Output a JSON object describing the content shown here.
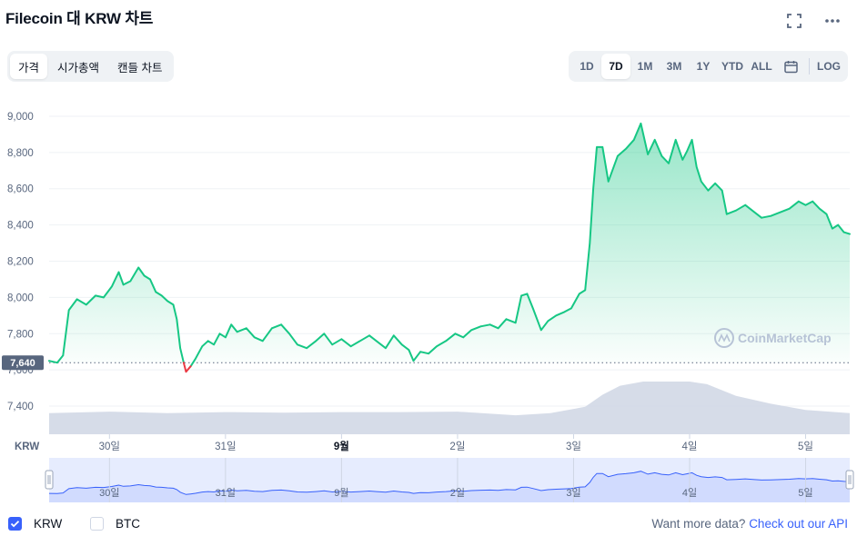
{
  "title": "Filecoin 대 KRW 차트",
  "header_icons": [
    "fullscreen-icon",
    "more-icon"
  ],
  "left_tabs": [
    {
      "label": "가격",
      "active": true
    },
    {
      "label": "시가총액",
      "active": false
    },
    {
      "label": "캔들 차트",
      "active": false
    }
  ],
  "range_tabs": [
    {
      "label": "1D",
      "active": false
    },
    {
      "label": "7D",
      "active": true
    },
    {
      "label": "1M",
      "active": false
    },
    {
      "label": "3M",
      "active": false
    },
    {
      "label": "1Y",
      "active": false
    },
    {
      "label": "YTD",
      "active": false
    },
    {
      "label": "ALL",
      "active": false
    }
  ],
  "log_label": "LOG",
  "watermark": "CoinMarketCap",
  "colors": {
    "up": "#16c784",
    "down": "#ea3943",
    "volume": "#cfd6e4",
    "navigator_fill": "#dce4fd",
    "navigator_line": "#3861fb",
    "accent": "#3861fb"
  },
  "chart_data": {
    "type": "area",
    "currency": "KRW",
    "y_axis_label": "KRW",
    "y_ticks": [
      7400,
      7600,
      7800,
      8000,
      8200,
      8400,
      8600,
      8800,
      9000
    ],
    "y_tick_labels": [
      "7,400",
      "7,600",
      "7,800",
      "8,000",
      "8,200",
      "8,400",
      "8,600",
      "8,800",
      "9,000"
    ],
    "ylim": [
      7300,
      9050
    ],
    "x_range_days": [
      -0.52,
      6.38
    ],
    "x_ticks": [
      {
        "label": "30일",
        "day": 0,
        "bold": false
      },
      {
        "label": "31일",
        "day": 1,
        "bold": false
      },
      {
        "label": "9월",
        "day": 2,
        "bold": true
      },
      {
        "label": "2일",
        "day": 3,
        "bold": false
      },
      {
        "label": "3일",
        "day": 4,
        "bold": false
      },
      {
        "label": "4일",
        "day": 5,
        "bold": false
      },
      {
        "label": "5일",
        "day": 6,
        "bold": false
      }
    ],
    "baseline_price": 7640,
    "baseline_label": "7,640",
    "grid": true,
    "price_series": [
      [
        -0.52,
        7650
      ],
      [
        -0.45,
        7640
      ],
      [
        -0.4,
        7680
      ],
      [
        -0.35,
        7930
      ],
      [
        -0.28,
        7990
      ],
      [
        -0.2,
        7960
      ],
      [
        -0.12,
        8010
      ],
      [
        -0.05,
        8000
      ],
      [
        0.02,
        8060
      ],
      [
        0.08,
        8140
      ],
      [
        0.12,
        8070
      ],
      [
        0.18,
        8090
      ],
      [
        0.25,
        8165
      ],
      [
        0.3,
        8120
      ],
      [
        0.35,
        8100
      ],
      [
        0.4,
        8030
      ],
      [
        0.45,
        8010
      ],
      [
        0.5,
        7980
      ],
      [
        0.55,
        7960
      ],
      [
        0.58,
        7880
      ],
      [
        0.61,
        7720
      ],
      [
        0.64,
        7640
      ],
      [
        0.66,
        7590
      ],
      [
        0.7,
        7620
      ],
      [
        0.74,
        7660
      ],
      [
        0.8,
        7730
      ],
      [
        0.85,
        7760
      ],
      [
        0.9,
        7740
      ],
      [
        0.95,
        7800
      ],
      [
        1.0,
        7780
      ],
      [
        1.05,
        7850
      ],
      [
        1.1,
        7810
      ],
      [
        1.18,
        7830
      ],
      [
        1.25,
        7780
      ],
      [
        1.32,
        7760
      ],
      [
        1.4,
        7830
      ],
      [
        1.48,
        7850
      ],
      [
        1.55,
        7800
      ],
      [
        1.62,
        7740
      ],
      [
        1.7,
        7720
      ],
      [
        1.78,
        7760
      ],
      [
        1.85,
        7800
      ],
      [
        1.92,
        7740
      ],
      [
        2.0,
        7770
      ],
      [
        2.08,
        7730
      ],
      [
        2.16,
        7760
      ],
      [
        2.24,
        7790
      ],
      [
        2.3,
        7760
      ],
      [
        2.38,
        7720
      ],
      [
        2.45,
        7790
      ],
      [
        2.52,
        7740
      ],
      [
        2.58,
        7710
      ],
      [
        2.62,
        7650
      ],
      [
        2.68,
        7700
      ],
      [
        2.75,
        7690
      ],
      [
        2.82,
        7730
      ],
      [
        2.9,
        7760
      ],
      [
        2.98,
        7800
      ],
      [
        3.05,
        7780
      ],
      [
        3.12,
        7820
      ],
      [
        3.2,
        7840
      ],
      [
        3.28,
        7850
      ],
      [
        3.35,
        7830
      ],
      [
        3.42,
        7880
      ],
      [
        3.5,
        7860
      ],
      [
        3.55,
        8010
      ],
      [
        3.6,
        8020
      ],
      [
        3.65,
        7940
      ],
      [
        3.72,
        7820
      ],
      [
        3.78,
        7870
      ],
      [
        3.85,
        7900
      ],
      [
        3.92,
        7920
      ],
      [
        3.98,
        7940
      ],
      [
        4.05,
        8020
      ],
      [
        4.1,
        8040
      ],
      [
        4.14,
        8300
      ],
      [
        4.17,
        8600
      ],
      [
        4.2,
        8830
      ],
      [
        4.25,
        8830
      ],
      [
        4.3,
        8640
      ],
      [
        4.38,
        8780
      ],
      [
        4.45,
        8820
      ],
      [
        4.52,
        8870
      ],
      [
        4.58,
        8960
      ],
      [
        4.64,
        8790
      ],
      [
        4.7,
        8870
      ],
      [
        4.76,
        8780
      ],
      [
        4.82,
        8740
      ],
      [
        4.88,
        8870
      ],
      [
        4.94,
        8760
      ],
      [
        4.98,
        8810
      ],
      [
        5.02,
        8870
      ],
      [
        5.06,
        8720
      ],
      [
        5.1,
        8640
      ],
      [
        5.16,
        8590
      ],
      [
        5.22,
        8630
      ],
      [
        5.28,
        8590
      ],
      [
        5.32,
        8460
      ],
      [
        5.4,
        8480
      ],
      [
        5.48,
        8510
      ],
      [
        5.56,
        8470
      ],
      [
        5.62,
        8440
      ],
      [
        5.7,
        8450
      ],
      [
        5.78,
        8470
      ],
      [
        5.86,
        8490
      ],
      [
        5.94,
        8530
      ],
      [
        6.0,
        8510
      ],
      [
        6.06,
        8530
      ],
      [
        6.12,
        8490
      ],
      [
        6.18,
        8460
      ],
      [
        6.23,
        8380
      ],
      [
        6.28,
        8400
      ],
      [
        6.33,
        8360
      ],
      [
        6.38,
        8350
      ]
    ],
    "volume_series": [
      [
        -0.52,
        0.4
      ],
      [
        0.0,
        0.43
      ],
      [
        0.5,
        0.4
      ],
      [
        1.0,
        0.42
      ],
      [
        1.5,
        0.41
      ],
      [
        2.0,
        0.42
      ],
      [
        2.5,
        0.42
      ],
      [
        3.0,
        0.43
      ],
      [
        3.5,
        0.36
      ],
      [
        3.8,
        0.4
      ],
      [
        4.1,
        0.52
      ],
      [
        4.25,
        0.75
      ],
      [
        4.4,
        0.92
      ],
      [
        4.6,
        1.0
      ],
      [
        4.8,
        1.0
      ],
      [
        5.0,
        1.0
      ],
      [
        5.15,
        0.95
      ],
      [
        5.4,
        0.73
      ],
      [
        5.7,
        0.58
      ],
      [
        6.0,
        0.46
      ],
      [
        6.38,
        0.4
      ]
    ],
    "navigator": {
      "x_ticks": [
        "30일",
        "31일",
        "9월",
        "2일",
        "3일",
        "4일",
        "5일"
      ]
    }
  },
  "footer": {
    "krw_label": "KRW",
    "krw_checked": true,
    "btc_label": "BTC",
    "btc_checked": false,
    "cta_text": "Want more data?",
    "cta_link": "Check out our API"
  }
}
